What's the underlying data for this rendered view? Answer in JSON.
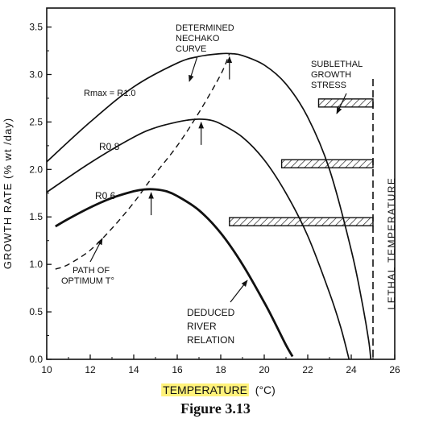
{
  "chart_data": {
    "type": "line",
    "xlabel": "TEMPERATURE",
    "xlabel_unit": "(°C)",
    "ylabel": "GROWTH RATE (% wt /day)",
    "xlim": [
      10,
      26
    ],
    "ylim": [
      0.0,
      3.7
    ],
    "xticks": [
      "10",
      "12",
      "14",
      "16",
      "18",
      "20",
      "22",
      "24",
      "26"
    ],
    "yticks": [
      "0.0",
      "0.5",
      "1.0",
      "1.5",
      "2.0",
      "2.5",
      "3.0",
      "3.5"
    ],
    "series": [
      {
        "name": "Rmax = R1.0",
        "x": [
          10,
          12,
          14,
          16,
          17,
          18,
          18.5,
          19,
          20,
          21,
          22,
          23,
          24,
          24.5,
          24.8,
          24.9
        ],
        "y": [
          2.08,
          2.5,
          2.87,
          3.12,
          3.19,
          3.22,
          3.22,
          3.2,
          3.1,
          2.9,
          2.55,
          2.0,
          1.15,
          0.6,
          0.2,
          0.0
        ]
      },
      {
        "name": "R0.8",
        "x": [
          10,
          12,
          14,
          15,
          16,
          16.5,
          17,
          17.5,
          18,
          19,
          20,
          21,
          22,
          23,
          23.5,
          23.9
        ],
        "y": [
          1.76,
          2.07,
          2.34,
          2.44,
          2.5,
          2.52,
          2.53,
          2.52,
          2.48,
          2.34,
          2.1,
          1.75,
          1.3,
          0.7,
          0.35,
          0.0
        ]
      },
      {
        "name": "R0.6",
        "x": [
          10.4,
          11,
          12,
          13,
          14,
          14.5,
          15,
          15.5,
          16,
          17,
          18,
          19,
          20,
          20.5,
          21,
          21.3
        ],
        "y": [
          1.4,
          1.48,
          1.6,
          1.7,
          1.77,
          1.79,
          1.79,
          1.77,
          1.72,
          1.57,
          1.33,
          1.0,
          0.6,
          0.38,
          0.15,
          0.03
        ]
      },
      {
        "name": "PATH OF OPTIMUM T°",
        "style": "dashed",
        "x": [
          10.4,
          11,
          12,
          13,
          14,
          14.8,
          16,
          17,
          18,
          18.4
        ],
        "y": [
          0.95,
          1.0,
          1.15,
          1.38,
          1.65,
          1.9,
          2.25,
          2.6,
          3.0,
          3.22
        ]
      }
    ],
    "stress_bars": [
      {
        "x_start": 22.5,
        "x_end": 25,
        "y": 2.7
      },
      {
        "x_start": 20.8,
        "x_end": 25,
        "y": 2.06
      },
      {
        "x_start": 18.4,
        "x_end": 25,
        "y": 1.45
      }
    ],
    "lethal_x": 25,
    "optimum_points": [
      [
        18.4,
        3.22
      ],
      [
        17.1,
        2.53
      ],
      [
        14.8,
        1.79
      ]
    ],
    "annotations": {
      "determined_1": "DETERMINED",
      "determined_2": "NECHAKO",
      "determined_3": "CURVE",
      "rmax": "Rmax = R1.0",
      "r08": "R0.8",
      "r06": "R0.6",
      "path_1": "PATH OF",
      "path_2": "OPTIMUM T°",
      "deduced_1": "DEDUCED",
      "deduced_2": "RIVER",
      "deduced_3": "RELATION",
      "sublethal_1": "SUBLETHAL",
      "sublethal_2": "GROWTH",
      "sublethal_3": "STRESS",
      "lethal": "LETHAL TEMPERATURE"
    },
    "grid": false
  },
  "caption": "Figure 3.13"
}
